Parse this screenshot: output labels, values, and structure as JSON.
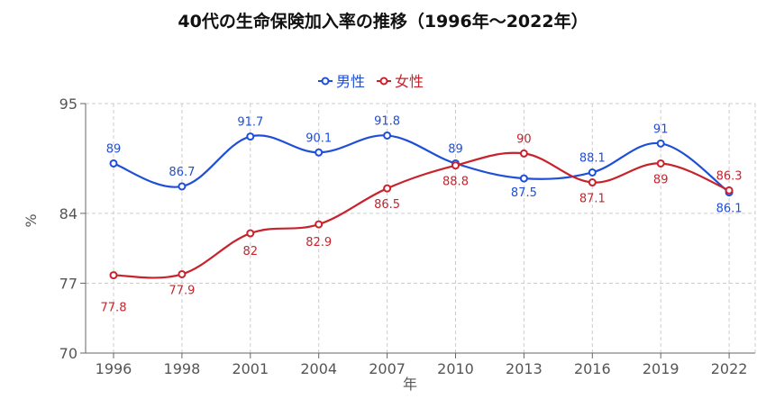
{
  "chart_data": {
    "type": "line",
    "title": "40代の生命保険加入率の推移（1996年〜2022年）",
    "xlabel": "年",
    "ylabel": "%",
    "categories": [
      "1996",
      "1998",
      "2001",
      "2004",
      "2007",
      "2010",
      "2013",
      "2016",
      "2019",
      "2022"
    ],
    "ylim": [
      70,
      95
    ],
    "yticks": [
      70,
      77,
      84,
      95
    ],
    "grid": true,
    "legend": "top-center",
    "smooth": true,
    "series": [
      {
        "name": "男性",
        "color": "#1f4fd8",
        "values": [
          89,
          86.7,
          91.7,
          90.1,
          91.8,
          89,
          87.5,
          88.1,
          91,
          86.1
        ]
      },
      {
        "name": "女性",
        "color": "#c8232c",
        "values": [
          77.8,
          77.9,
          82,
          82.9,
          86.5,
          88.8,
          90,
          87.1,
          89,
          86.3
        ]
      }
    ]
  }
}
